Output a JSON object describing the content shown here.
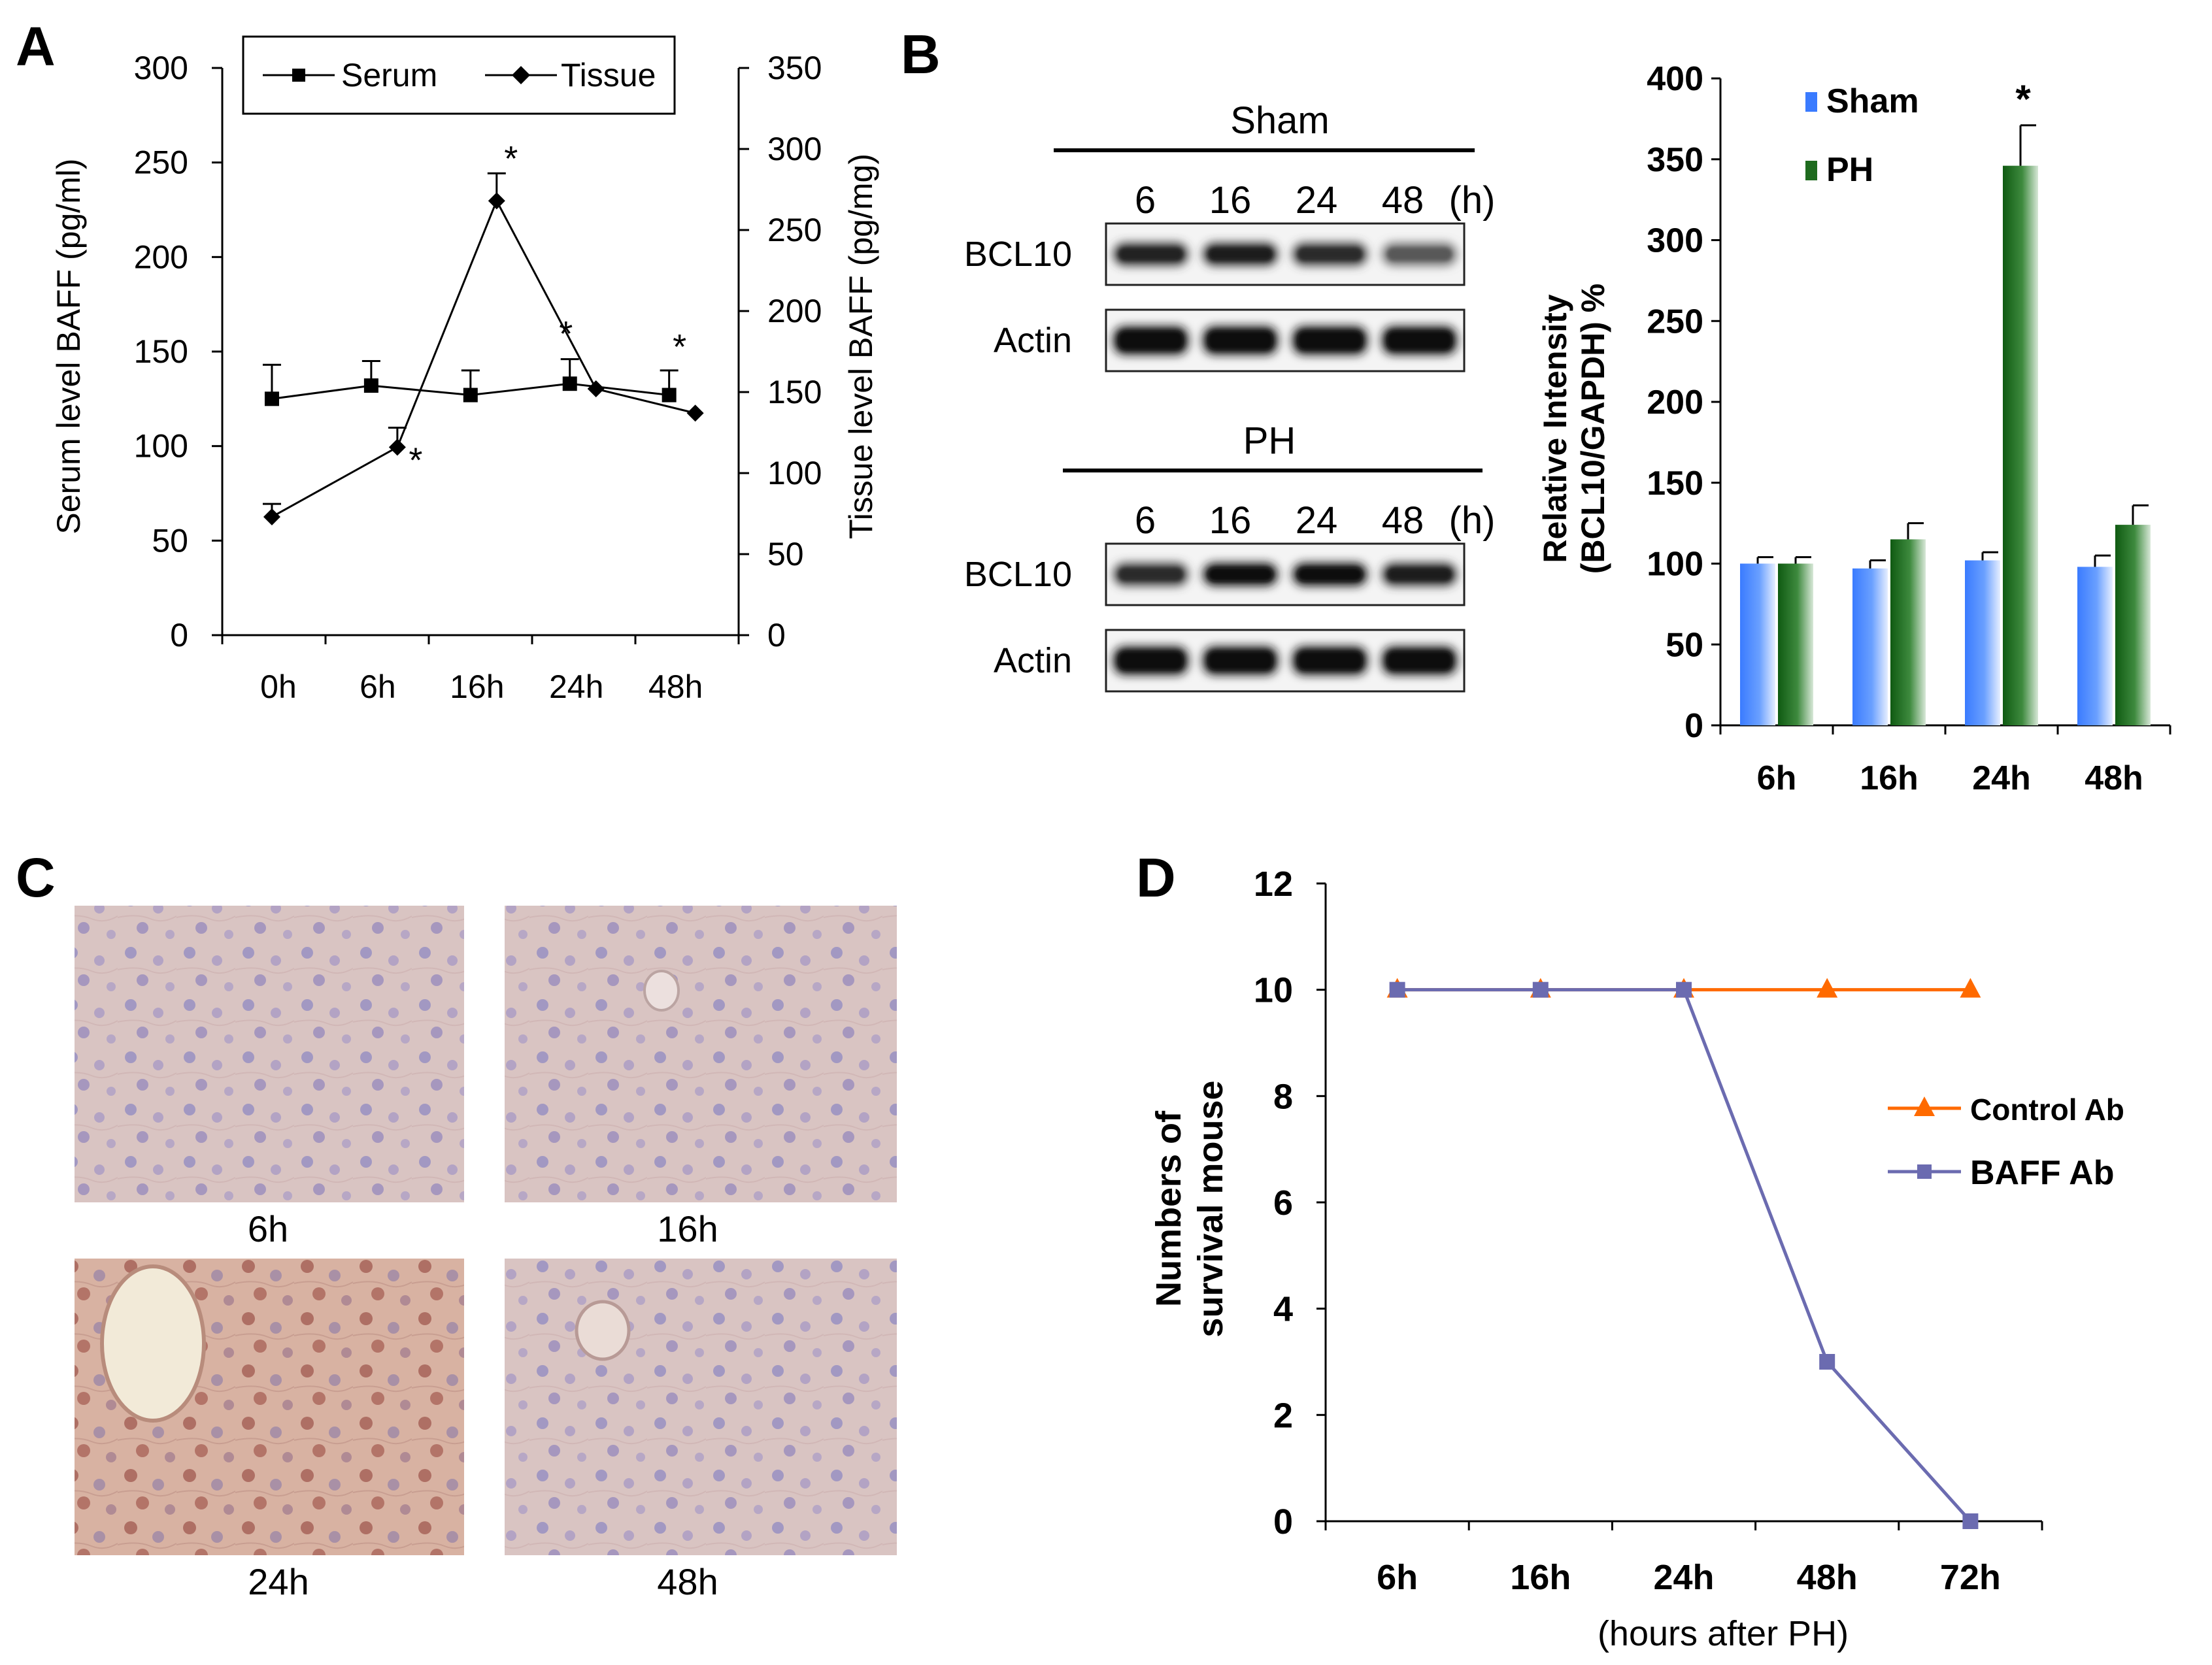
{
  "figure": {
    "panel_labels": [
      "A",
      "B",
      "C",
      "D"
    ]
  },
  "panelA": {
    "chart_data": {
      "type": "line",
      "categories": [
        "0h",
        "6h",
        "16h",
        "24h",
        "48h"
      ],
      "ylabel": "Serum level BAFF (pg/ml)",
      "y2label": "Tissue level BAFF (pg/mg)",
      "ylim": [
        0,
        300
      ],
      "y2lim": [
        0,
        350
      ],
      "yticks": [
        "0",
        "50",
        "100",
        "150",
        "200",
        "250",
        "300"
      ],
      "y2ticks": [
        "0",
        "50",
        "100",
        "150",
        "200",
        "250",
        "300",
        "350"
      ],
      "legend_position": "top",
      "series": [
        {
          "name": "Serum",
          "axis": "left",
          "marker": "square",
          "values": [
            125,
            132,
            127,
            133,
            127
          ],
          "errors": [
            18,
            13,
            13,
            13,
            13
          ]
        },
        {
          "name": "Tissue",
          "axis": "right",
          "marker": "diamond",
          "values": [
            73,
            116,
            268,
            152,
            137
          ],
          "errors": [
            8,
            12,
            17,
            0,
            0
          ]
        }
      ],
      "annotations": [
        "*",
        "*",
        "*",
        "*"
      ]
    }
  },
  "panelB": {
    "blots": [
      {
        "group": "Sham",
        "lanes": [
          "6",
          "16",
          "24",
          "48"
        ],
        "unit": "(h)",
        "rows": [
          "BCL10",
          "Actin"
        ],
        "bcl10_intensity": [
          0.75,
          0.8,
          0.7,
          0.45
        ]
      },
      {
        "group": "PH",
        "lanes": [
          "6",
          "16",
          "24",
          "48"
        ],
        "unit": "(h)",
        "rows": [
          "BCL10",
          "Actin"
        ],
        "bcl10_intensity": [
          0.7,
          0.95,
          0.95,
          0.8
        ]
      }
    ],
    "chart_data": {
      "type": "bar",
      "categories": [
        "6h",
        "16h",
        "24h",
        "48h"
      ],
      "ylabel": "Relative Intensity (BCL10/GAPDH) %",
      "ylabel_lines": [
        "Relative Intensity",
        "(BCL10/GAPDH) %"
      ],
      "ylim": [
        0,
        400
      ],
      "yticks": [
        "0",
        "50",
        "100",
        "150",
        "200",
        "250",
        "300",
        "350",
        "400"
      ],
      "legend_position": "top-left",
      "series": [
        {
          "name": "Sham",
          "color": "#3a7bff",
          "values": [
            100,
            97,
            102,
            98
          ],
          "errors": [
            4,
            5,
            5,
            7
          ]
        },
        {
          "name": "PH",
          "color": "#1e6b1e",
          "values": [
            100,
            115,
            346,
            124
          ],
          "errors": [
            4,
            10,
            25,
            12
          ]
        }
      ],
      "annotations": [
        "*"
      ]
    }
  },
  "panelC": {
    "micrographs": [
      "6h",
      "16h",
      "24h",
      "48h"
    ]
  },
  "panelD": {
    "chart_data": {
      "type": "line",
      "categories": [
        "6h",
        "16h",
        "24h",
        "48h",
        "72h"
      ],
      "xlabel": "(hours after PH)",
      "ylabel": "Numbers of survival mouse",
      "ylabel_lines": [
        "Numbers of",
        "survival mouse"
      ],
      "ylim": [
        0,
        12
      ],
      "yticks": [
        "0",
        "2",
        "4",
        "6",
        "8",
        "10",
        "12"
      ],
      "legend_position": "right",
      "series": [
        {
          "name": "Control Ab",
          "color": "#ff6a00",
          "marker": "triangle",
          "values": [
            10,
            10,
            10,
            10,
            10
          ]
        },
        {
          "name": "BAFF Ab",
          "color": "#6b6bb0",
          "marker": "square",
          "values": [
            10,
            10,
            10,
            3,
            0
          ]
        }
      ]
    }
  }
}
